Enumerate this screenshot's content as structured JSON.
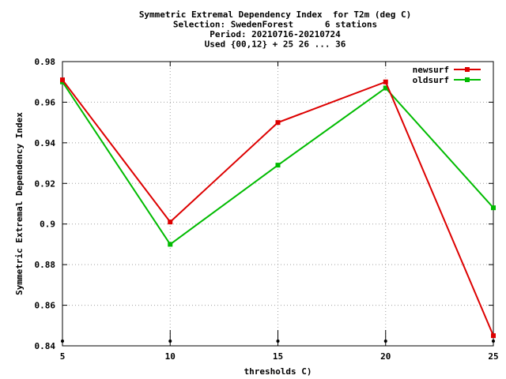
{
  "chart_data": {
    "type": "line",
    "title_lines": [
      "Symmetric Extremal Dependency Index  for T2m (deg C)",
      "Selection: SwedenForest      6 stations",
      "Period: 20210716-20210724",
      "Used {00,12} + 25 26 ... 36"
    ],
    "xlabel": "thresholds C)",
    "ylabel": "Symmetric Extremal Dependency Index",
    "x": [
      5,
      10,
      15,
      20,
      25
    ],
    "xlim": [
      5,
      25
    ],
    "ylim": [
      0.84,
      0.98
    ],
    "x_ticks": [
      5,
      10,
      15,
      20,
      25
    ],
    "y_ticks": [
      0.84,
      0.86,
      0.88,
      0.9,
      0.92,
      0.94,
      0.96,
      0.98
    ],
    "y_tick_labels": [
      "0.84",
      "0.86",
      "0.88",
      "0.9",
      "0.92",
      "0.94",
      "0.96",
      "0.98"
    ],
    "grid": true,
    "legend_position": "top-right",
    "series": [
      {
        "name": "newsurf",
        "color": "#dd0000",
        "values": [
          0.971,
          0.901,
          0.95,
          0.97,
          0.845
        ]
      },
      {
        "name": "oldsurf",
        "color": "#00bb00",
        "values": [
          0.97,
          0.89,
          0.929,
          0.967,
          0.908
        ]
      }
    ]
  }
}
